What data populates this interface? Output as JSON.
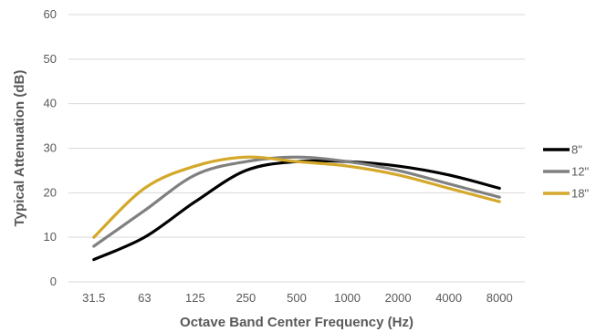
{
  "chart_data": {
    "type": "line",
    "title": "",
    "xlabel": "Octave Band Center Frequency (Hz)",
    "ylabel": "Typical Attenuation (dB)",
    "categories": [
      "31.5",
      "63",
      "125",
      "250",
      "500",
      "1000",
      "2000",
      "4000",
      "8000"
    ],
    "ylim": [
      0,
      60
    ],
    "yticks": [
      "0",
      "10",
      "20",
      "30",
      "40",
      "50",
      "60"
    ],
    "grid": "horizontal",
    "legend_position": "right",
    "smooth": true,
    "series": [
      {
        "name": "8\"",
        "color": "#000000",
        "values": [
          5,
          10,
          18,
          25,
          27,
          27,
          26,
          24,
          21
        ]
      },
      {
        "name": "12\"",
        "color": "#808080",
        "values": [
          8,
          16,
          24,
          27,
          28,
          27,
          25,
          22,
          19
        ]
      },
      {
        "name": "18\"",
        "color": "#D4A82A",
        "values": [
          10,
          21,
          26,
          28,
          27,
          26,
          24,
          21,
          18
        ]
      }
    ]
  }
}
